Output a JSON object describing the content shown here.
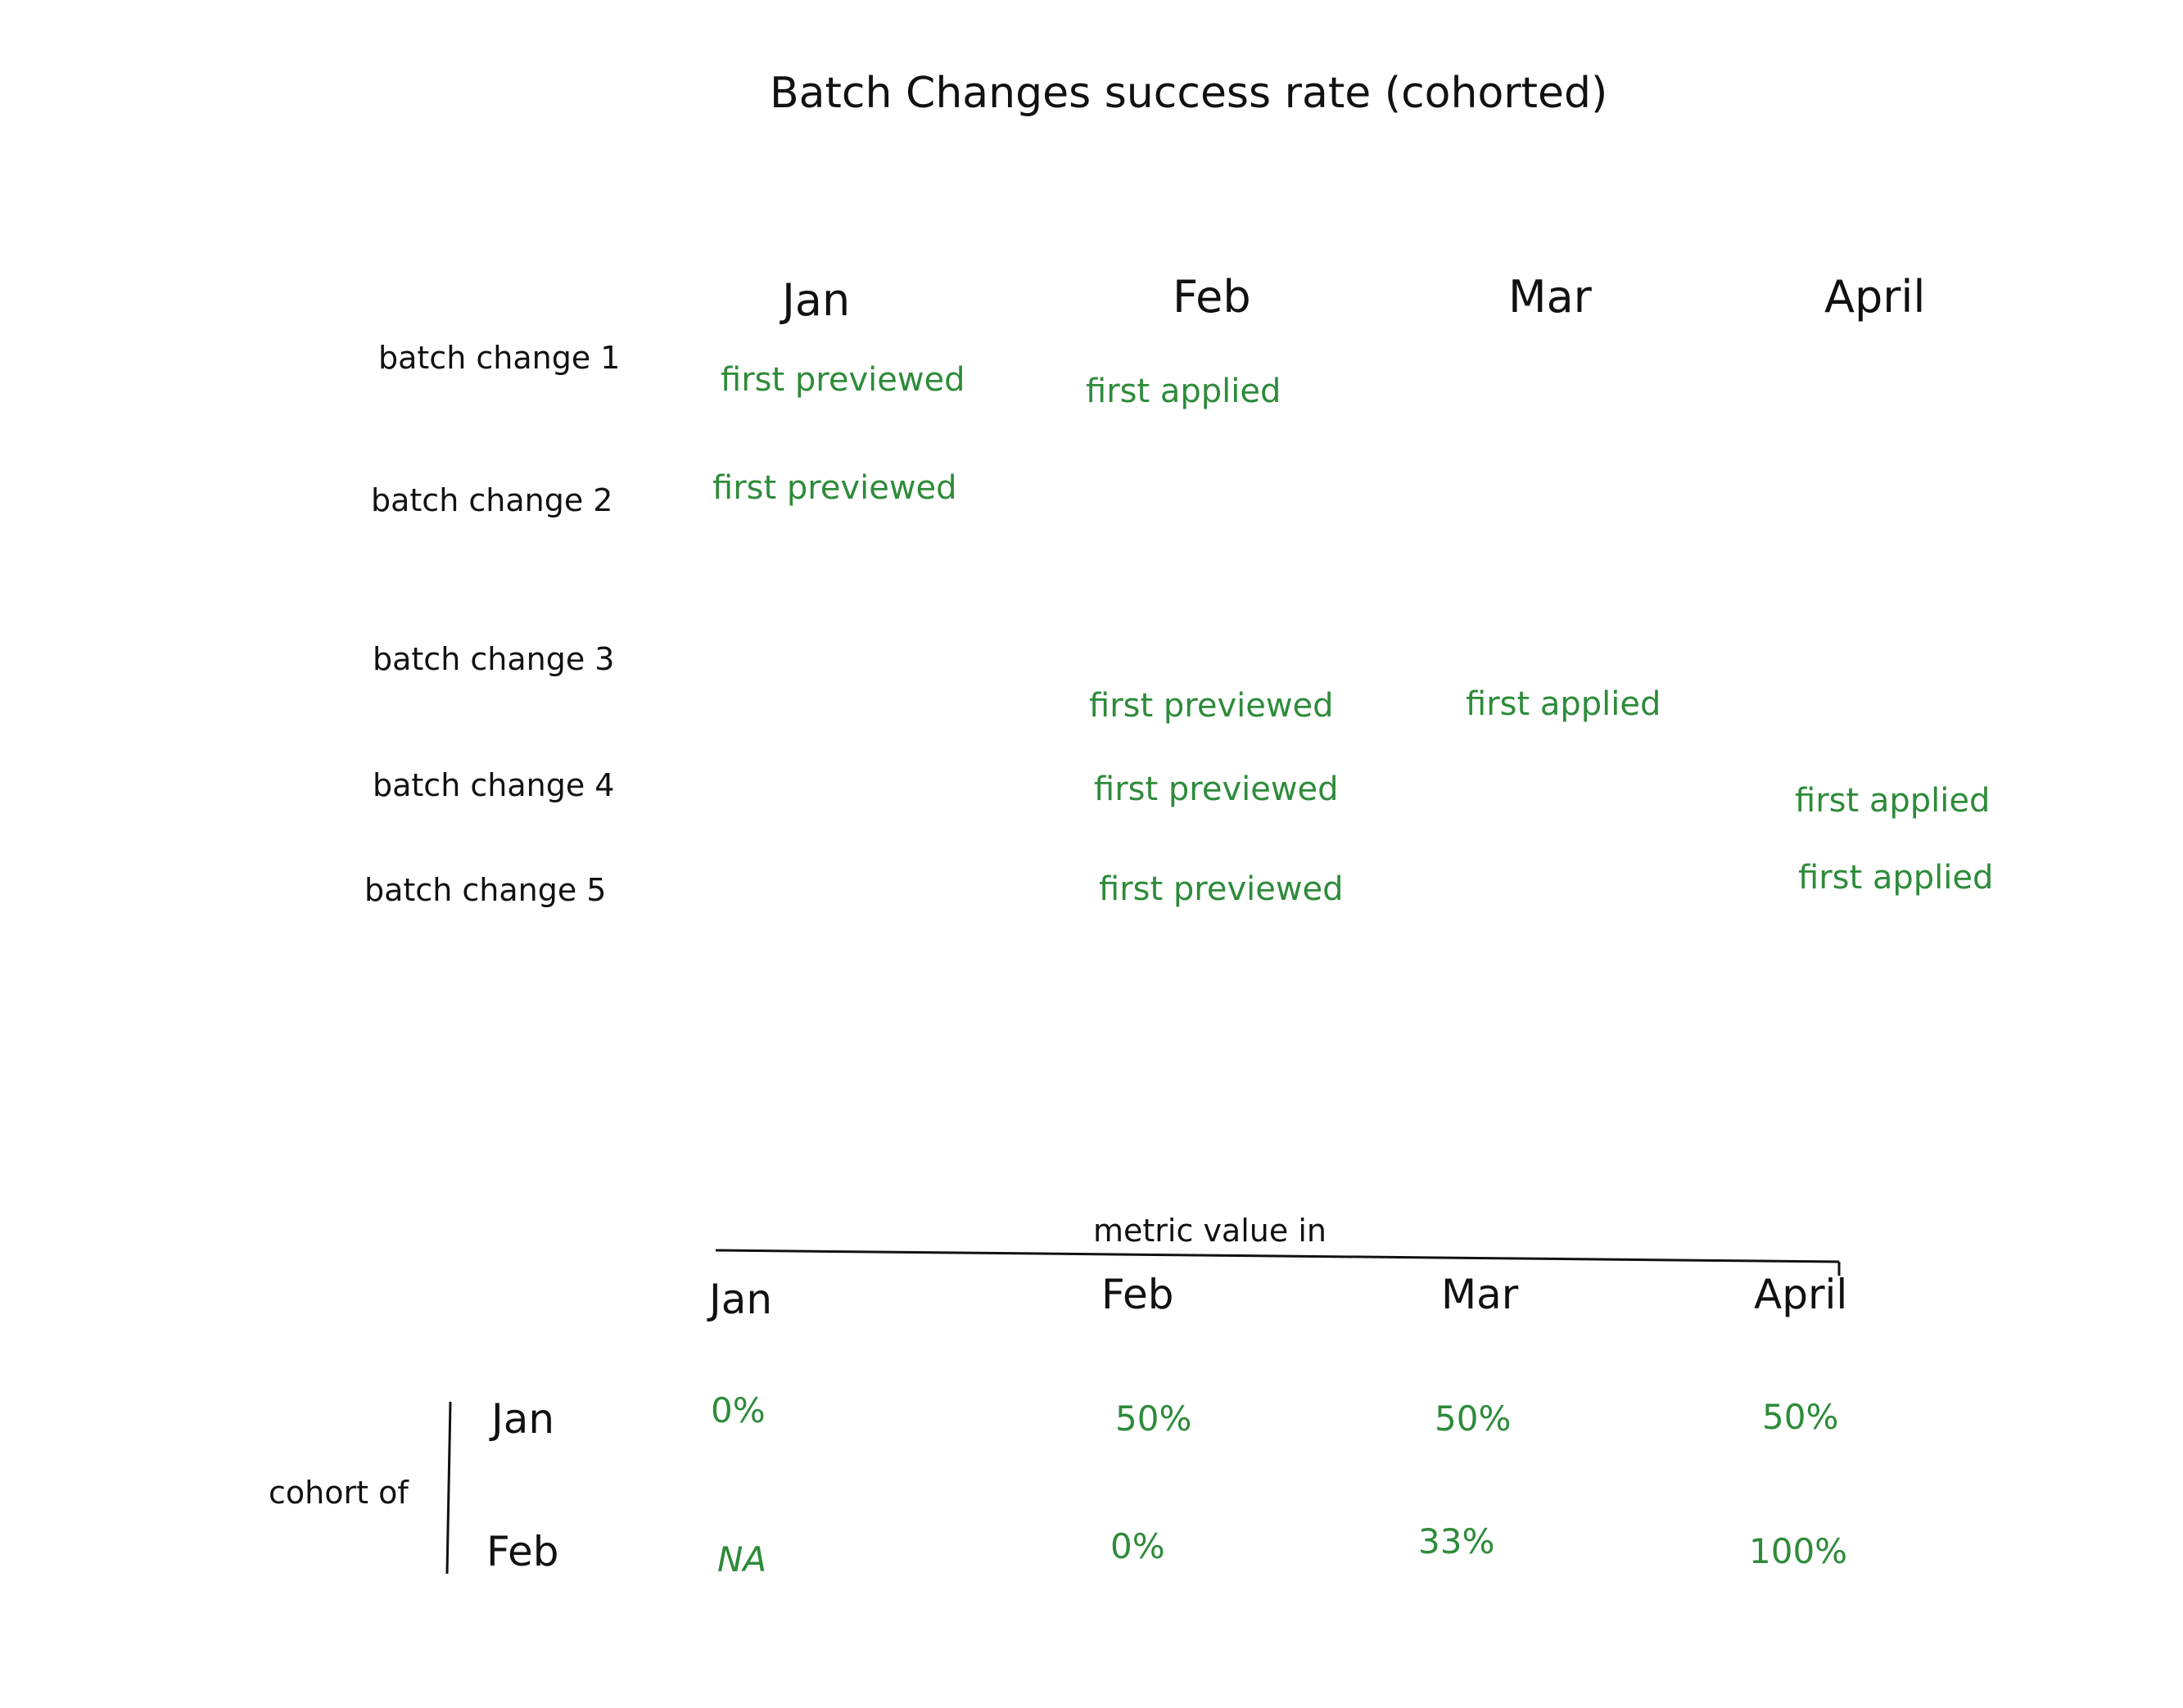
{
  "title": "Batch Changes success rate (cohorted)",
  "timeline": {
    "months": [
      "Jan",
      "Feb",
      "Mar",
      "April"
    ],
    "rows": [
      {
        "label": "batch change 1",
        "events": [
          {
            "text": "first previewed",
            "month": "Jan"
          },
          {
            "text": "first applied",
            "month": "Feb"
          }
        ]
      },
      {
        "label": "batch change 2",
        "events": [
          {
            "text": "first previewed",
            "month": "Jan"
          }
        ]
      },
      {
        "label": "batch change 3",
        "events": [
          {
            "text": "first previewed",
            "month": "Feb"
          },
          {
            "text": "first applied",
            "month": "Mar"
          }
        ]
      },
      {
        "label": "batch change 4",
        "events": [
          {
            "text": "first previewed",
            "month": "Feb"
          },
          {
            "text": "first applied",
            "month": "April"
          }
        ]
      },
      {
        "label": "batch change 5",
        "events": [
          {
            "text": "first previewed",
            "month": "Feb"
          },
          {
            "text": "first applied",
            "month": "April"
          }
        ]
      }
    ]
  },
  "cohort_table": {
    "header_label": "metric value in",
    "months": [
      "Jan",
      "Feb",
      "Mar",
      "April"
    ],
    "side_label": "cohort of",
    "rows": [
      {
        "label": "Jan",
        "values": [
          "0%",
          "50%",
          "50%",
          "50%"
        ]
      },
      {
        "label": "Feb",
        "values": [
          "NA",
          "0%",
          "33%",
          "100%"
        ]
      }
    ]
  }
}
